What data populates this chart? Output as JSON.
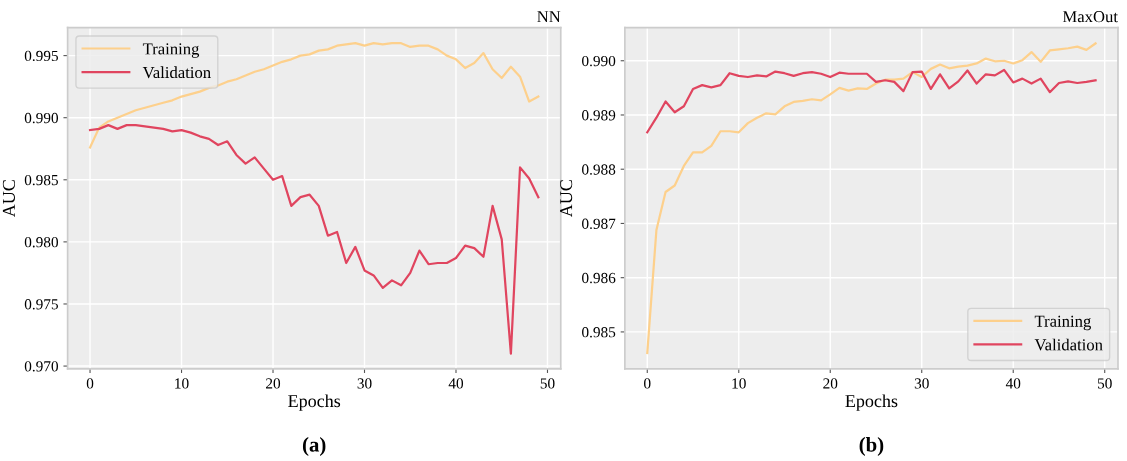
{
  "chart_data": [
    {
      "type": "line",
      "title": "NN",
      "xlabel": "Epochs",
      "ylabel": "AUC",
      "annotations": [
        "(a)"
      ],
      "x": [
        0,
        1,
        2,
        3,
        4,
        5,
        6,
        7,
        8,
        9,
        10,
        11,
        12,
        13,
        14,
        15,
        16,
        17,
        18,
        19,
        20,
        21,
        22,
        23,
        24,
        25,
        26,
        27,
        28,
        29,
        30,
        31,
        32,
        33,
        34,
        35,
        36,
        37,
        38,
        39,
        40,
        41,
        42,
        43,
        44,
        45,
        46,
        47,
        48,
        49
      ],
      "xlim": [
        -2.45,
        51.45
      ],
      "xticks": [
        0,
        10,
        20,
        30,
        40,
        50
      ],
      "ylim": [
        0.96978,
        0.99725
      ],
      "yticks": [
        {
          "value": 0.97,
          "label": "0.970"
        },
        0.975,
        {
          "value": 0.98,
          "label": "0.980"
        },
        0.985,
        {
          "value": 0.99,
          "label": "0.990"
        },
        0.995
      ],
      "grid": true,
      "legend": "top left",
      "line_style": "solid",
      "marker": "none",
      "series": [
        {
          "name": "Training",
          "color": "#fdd08c",
          "values": [
            0.9876,
            0.9892,
            0.9897,
            0.99,
            0.9903,
            0.9906,
            0.9908,
            0.991,
            0.9912,
            0.9914,
            0.9917,
            0.9919,
            0.9921,
            0.9924,
            0.9926,
            0.9929,
            0.9931,
            0.9934,
            0.9937,
            0.9939,
            0.9942,
            0.9945,
            0.9947,
            0.995,
            0.9951,
            0.9954,
            0.9955,
            0.9958,
            0.9959,
            0.996,
            0.9958,
            0.996,
            0.9959,
            0.996,
            0.996,
            0.9957,
            0.9958,
            0.9958,
            0.9955,
            0.995,
            0.9947,
            0.994,
            0.9944,
            0.9952,
            0.9939,
            0.9932,
            0.9941,
            0.9933,
            0.9913,
            0.9917
          ]
        },
        {
          "name": "Validation",
          "color": "#e0455f",
          "values": [
            0.989,
            0.9891,
            0.9894,
            0.9891,
            0.9894,
            0.9894,
            0.9893,
            0.9892,
            0.9891,
            0.9889,
            0.989,
            0.9888,
            0.9885,
            0.9883,
            0.9878,
            0.9881,
            0.987,
            0.9863,
            0.9868,
            0.9859,
            0.985,
            0.9853,
            0.9829,
            0.9836,
            0.9838,
            0.9829,
            0.9805,
            0.9808,
            0.9783,
            0.9796,
            0.9777,
            0.9773,
            0.9763,
            0.9769,
            0.9765,
            0.9775,
            0.9793,
            0.9782,
            0.9783,
            0.9783,
            0.9787,
            0.9797,
            0.9795,
            0.9788,
            0.9829,
            0.9802,
            0.971,
            0.986,
            0.9851,
            0.9836
          ]
        }
      ]
    },
    {
      "type": "line",
      "title": "MaxOut",
      "xlabel": "Epochs",
      "ylabel": "AUC",
      "annotations": [
        "(b)"
      ],
      "x": [
        0,
        1,
        2,
        3,
        4,
        5,
        6,
        7,
        8,
        9,
        10,
        11,
        12,
        13,
        14,
        15,
        16,
        17,
        18,
        19,
        20,
        21,
        22,
        23,
        24,
        25,
        26,
        27,
        28,
        29,
        30,
        31,
        32,
        33,
        34,
        35,
        36,
        37,
        38,
        39,
        40,
        41,
        42,
        43,
        44,
        45,
        46,
        47,
        48,
        49
      ],
      "xlim": [
        -2.45,
        51.45
      ],
      "xticks": [
        0,
        10,
        20,
        30,
        40,
        50
      ],
      "ylim": [
        0.98432,
        0.99061
      ],
      "yticks": [
        0.985,
        0.986,
        0.987,
        0.988,
        0.989,
        {
          "value": 0.99,
          "label": "0.990"
        }
      ],
      "grid": true,
      "legend": "bottom right",
      "line_style": "solid",
      "marker": "none",
      "series": [
        {
          "name": "Training",
          "color": "#fdd08c",
          "values": [
            0.98461,
            0.98688,
            0.98758,
            0.9877,
            0.98806,
            0.98831,
            0.98831,
            0.98843,
            0.9887,
            0.9887,
            0.98868,
            0.98885,
            0.98895,
            0.98903,
            0.98901,
            0.98916,
            0.98924,
            0.98926,
            0.98929,
            0.98927,
            0.98938,
            0.9895,
            0.98945,
            0.98949,
            0.98948,
            0.98958,
            0.98965,
            0.98965,
            0.98967,
            0.98979,
            0.9897,
            0.98985,
            0.98993,
            0.98986,
            0.98989,
            0.98991,
            0.98995,
            0.99004,
            0.98999,
            0.99,
            0.98995,
            0.99001,
            0.99016,
            0.98998,
            0.99019,
            0.99021,
            0.99023,
            0.99026,
            0.9902,
            0.99032
          ]
        },
        {
          "name": "Validation",
          "color": "#e0455f",
          "values": [
            0.98868,
            0.98895,
            0.98925,
            0.98905,
            0.98916,
            0.98948,
            0.98955,
            0.98951,
            0.98955,
            0.98977,
            0.98972,
            0.9897,
            0.98973,
            0.98971,
            0.9898,
            0.98977,
            0.98972,
            0.98977,
            0.98979,
            0.98976,
            0.9897,
            0.98978,
            0.98976,
            0.98976,
            0.98976,
            0.98961,
            0.98964,
            0.98961,
            0.98944,
            0.98979,
            0.9898,
            0.98948,
            0.98975,
            0.98949,
            0.98962,
            0.98982,
            0.98958,
            0.98975,
            0.98973,
            0.98983,
            0.9896,
            0.98967,
            0.98958,
            0.98967,
            0.98942,
            0.98959,
            0.98962,
            0.98959,
            0.98961,
            0.98964
          ]
        }
      ]
    }
  ]
}
